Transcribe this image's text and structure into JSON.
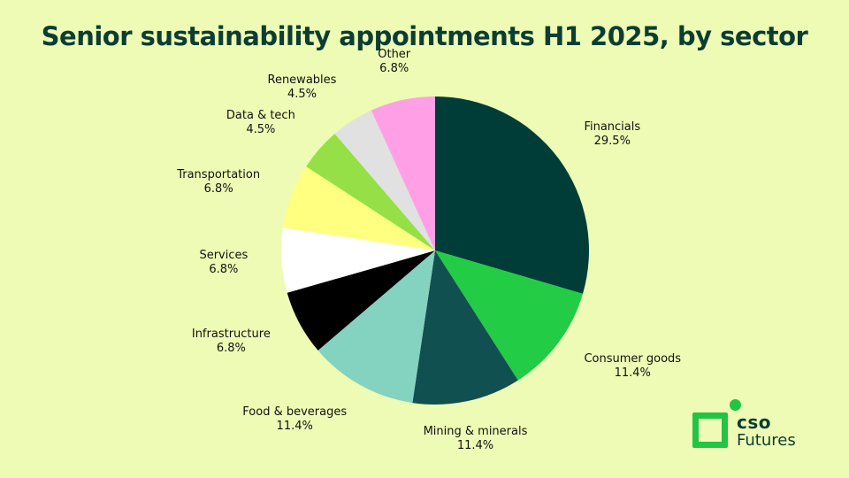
{
  "chart_data": {
    "type": "pie",
    "title": "Senior sustainability appointments H1 2025, by sector",
    "slices": [
      {
        "label": "Financials",
        "value": 29.5,
        "value_label": "29.5%",
        "color": "#013D38"
      },
      {
        "label": "Consumer goods",
        "value": 11.4,
        "value_label": "11.4%",
        "color": "#22CC44"
      },
      {
        "label": "Mining & minerals",
        "value": 11.4,
        "value_label": "11.4%",
        "color": "#115050"
      },
      {
        "label": "Food & beverages",
        "value": 11.4,
        "value_label": "11.4%",
        "color": "#84D2C0"
      },
      {
        "label": "Infrastructure",
        "value": 6.8,
        "value_label": "6.8%",
        "color": "#000000"
      },
      {
        "label": "Services",
        "value": 6.8,
        "value_label": "6.8%",
        "color": "#FFFFFF"
      },
      {
        "label": "Transportation",
        "value": 6.8,
        "value_label": "6.8%",
        "color": "#FFFF80"
      },
      {
        "label": "Data & tech",
        "value": 4.5,
        "value_label": "4.5%",
        "color": "#94E046"
      },
      {
        "label": "Renewables",
        "value": 4.5,
        "value_label": "4.5%",
        "color": "#E1E1E1"
      },
      {
        "label": "Other",
        "value": 6.8,
        "value_label": "6.8%",
        "color": "#FFA0E6"
      }
    ],
    "start_angle": "12 o'clock",
    "direction": "clockwise",
    "legend": "none"
  },
  "brand": {
    "line1": "cso",
    "line2": "Futures",
    "color": "#22C443"
  }
}
